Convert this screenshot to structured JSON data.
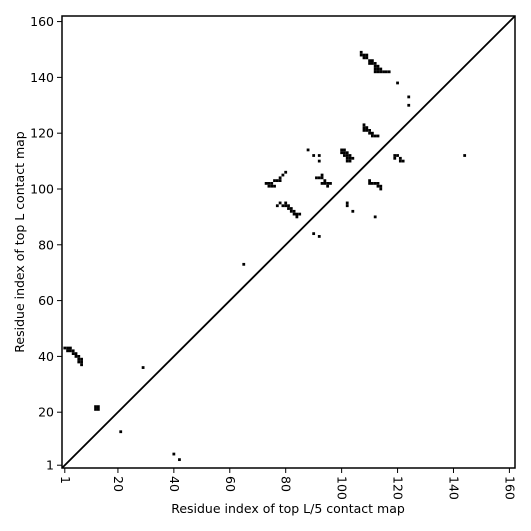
{
  "chart_data": {
    "type": "scatter",
    "x_label": "Residue index of top L/5 contact map",
    "y_label": "Residue index of top L contact map",
    "xlim": [
      0,
      162
    ],
    "ylim": [
      0,
      162
    ],
    "xticks": [
      1,
      20,
      40,
      60,
      80,
      100,
      120,
      140,
      160
    ],
    "yticks": [
      1,
      20,
      40,
      60,
      80,
      100,
      120,
      140,
      160
    ],
    "series": [
      {
        "color": "#000000",
        "x": [
          107,
          107,
          108,
          109,
          109,
          108,
          110,
          110,
          111,
          111,
          112,
          112,
          113,
          113,
          112,
          112,
          113,
          114,
          115,
          116,
          117,
          114,
          120,
          124,
          124,
          108,
          108,
          109,
          109,
          110,
          110,
          111,
          111,
          112,
          113,
          108,
          119,
          120,
          119,
          121,
          121,
          122,
          144,
          100,
          101,
          100,
          101,
          102,
          101,
          102,
          103,
          102,
          103,
          104,
          102,
          103,
          88,
          90,
          92,
          92,
          110,
          110,
          111,
          112,
          113,
          113,
          114,
          114,
          73,
          74,
          75,
          75,
          76,
          76,
          77,
          78,
          78,
          79,
          80,
          74,
          91,
          92,
          93,
          93,
          94,
          93,
          94,
          95,
          95,
          96,
          77,
          78,
          79,
          80,
          80,
          81,
          81,
          82,
          82,
          83,
          83,
          84,
          84,
          85,
          102,
          102,
          104,
          112,
          90,
          92,
          65,
          1,
          2,
          2,
          3,
          4,
          4,
          5,
          6,
          6,
          6,
          7,
          7,
          7,
          3,
          5,
          12,
          13,
          12,
          13,
          21,
          29,
          40,
          42
        ],
        "y": [
          149,
          148,
          148,
          148,
          147,
          147,
          146,
          145,
          146,
          145,
          145,
          144,
          144,
          143,
          143,
          142,
          142,
          142,
          142,
          142,
          142,
          143,
          138,
          133,
          130,
          123,
          122,
          122,
          121,
          121,
          120,
          120,
          119,
          119,
          119,
          121,
          112,
          112,
          111,
          111,
          110,
          110,
          112,
          114,
          114,
          113,
          113,
          113,
          112,
          112,
          112,
          111,
          111,
          111,
          110,
          110,
          114,
          112,
          112,
          110,
          103,
          102,
          102,
          102,
          102,
          101,
          101,
          100,
          102,
          102,
          102,
          101,
          101,
          103,
          103,
          104,
          103,
          105,
          106,
          101,
          104,
          104,
          105,
          104,
          103,
          102,
          102,
          102,
          101,
          102,
          94,
          95,
          94,
          94,
          95,
          93,
          94,
          93,
          92,
          92,
          91,
          91,
          90,
          91,
          95,
          94,
          92,
          90,
          84,
          83,
          73,
          43,
          43,
          42,
          42,
          42,
          41,
          40,
          40,
          39,
          38,
          38,
          39,
          37,
          43,
          41,
          21,
          21,
          22,
          22,
          13,
          36,
          5,
          3
        ]
      }
    ]
  }
}
